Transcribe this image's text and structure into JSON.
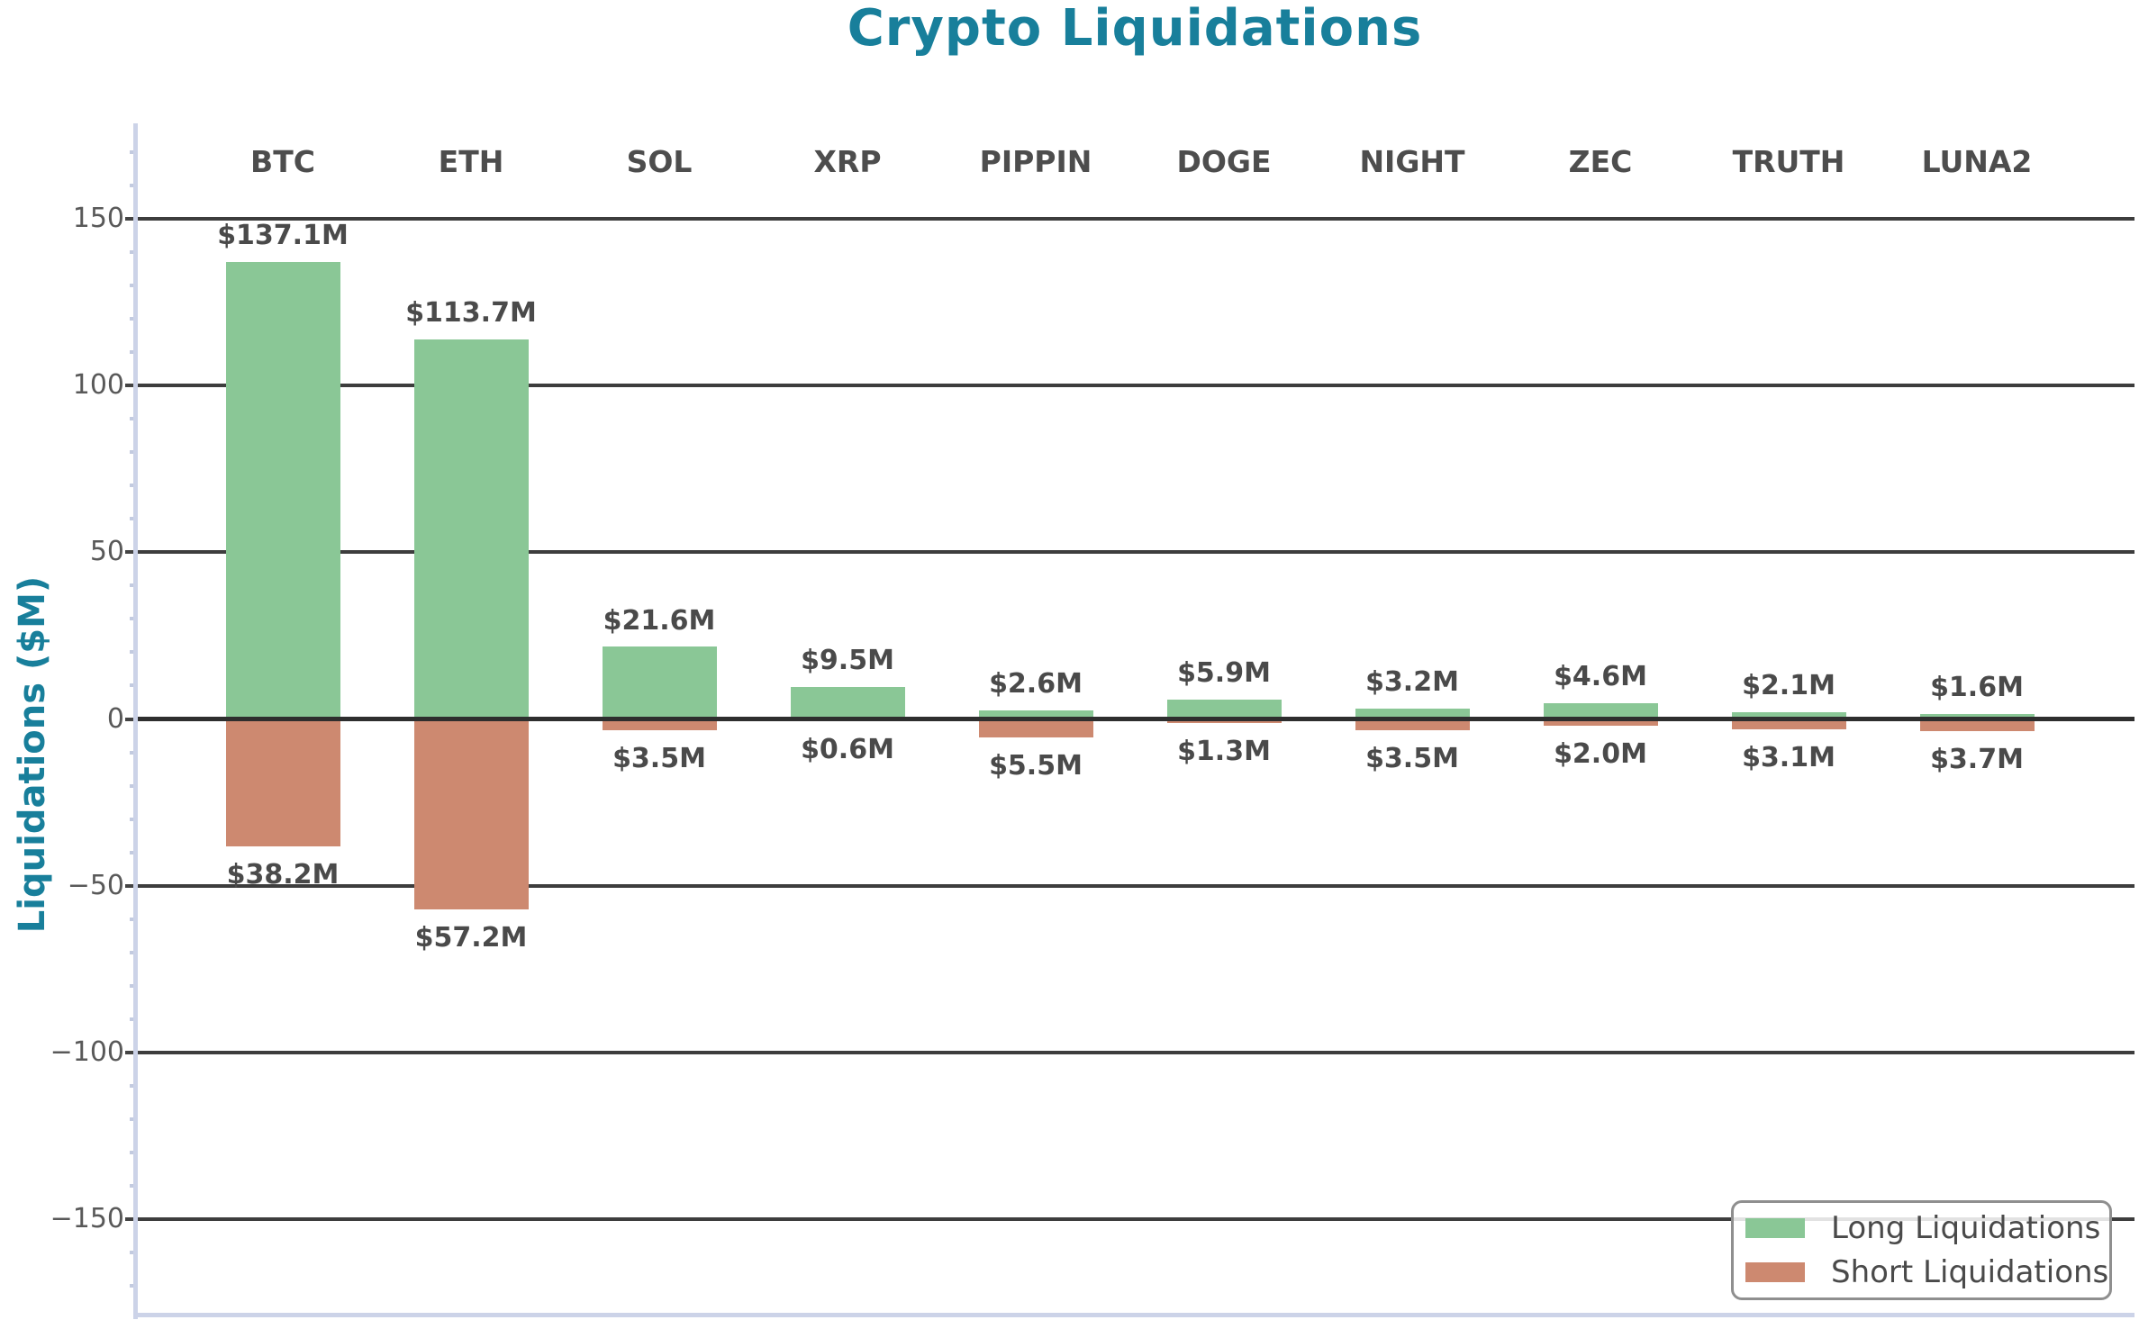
{
  "title": "Crypto Liquidations",
  "chart_data": {
    "type": "bar",
    "title": "Crypto Liquidations",
    "xlabel": "",
    "ylabel": "Liquidations ($M)",
    "categories": [
      "BTC",
      "ETH",
      "SOL",
      "XRP",
      "PIPPIN",
      "DOGE",
      "NIGHT",
      "ZEC",
      "TRUTH",
      "LUNA2"
    ],
    "series": [
      {
        "name": "Long Liquidations",
        "values": [
          137.1,
          113.7,
          21.6,
          9.5,
          2.6,
          5.9,
          3.2,
          4.6,
          2.1,
          1.6
        ],
        "labels": [
          "$137.1M",
          "$113.7M",
          "$21.6M",
          "$9.5M",
          "$2.6M",
          "$5.9M",
          "$3.2M",
          "$4.6M",
          "$2.1M",
          "$1.6M"
        ],
        "color": "#8AC796"
      },
      {
        "name": "Short Liquidations",
        "values": [
          -38.2,
          -57.2,
          -3.5,
          -0.6,
          -5.5,
          -1.3,
          -3.5,
          -2.0,
          -3.1,
          -3.7
        ],
        "labels": [
          "$38.2M",
          "$57.2M",
          "$3.5M",
          "$0.6M",
          "$5.5M",
          "$1.3M",
          "$3.5M",
          "$2.0M",
          "$3.1M",
          "$3.7M"
        ],
        "color": "#CD8970"
      }
    ],
    "yticks": [
      150,
      100,
      50,
      0,
      -50,
      -100,
      -150
    ],
    "ytick_labels": [
      "150",
      "100",
      "50",
      "0",
      "−50",
      "−100",
      "−150"
    ],
    "minor_tick_step": 10,
    "ylim": [
      -178.6,
      178.6
    ],
    "grid": true,
    "zero_line": true,
    "legend_position": "lower right",
    "colors": {
      "title": "#187F9B",
      "ylabel": "#187F9B",
      "grid": "#3D3D3D",
      "zero_line": "#2E2E2E",
      "tick_label": "#595959",
      "major_tick": "#444444",
      "minor_tick": "#C3CBE0",
      "spine": "#CCD3E8",
      "bar_value_label": "#4A4A4A",
      "category_label": "#4D4D4D",
      "legend_border": "#8F8F8F"
    }
  }
}
